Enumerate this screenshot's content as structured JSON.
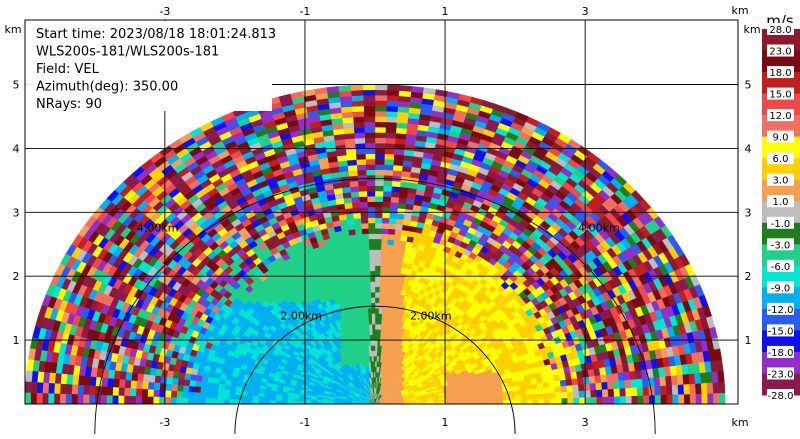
{
  "chart_data": {
    "type": "heatmap",
    "subtype": "radar-rhi-velocity",
    "info": {
      "start_time": "Start time: 2023/08/18 18:01:24.813",
      "instrument": "WLS200s-181/WLS200s-181",
      "field": "Field: VEL",
      "azimuth": "Azimuth(deg): 350.00",
      "nrays": "NRays: 90"
    },
    "x_unit": "km",
    "y_unit": "km",
    "xlim": [
      -4,
      5.5
    ],
    "ylim": [
      0,
      5.5
    ],
    "x_ticks": [
      -3,
      -1,
      1,
      3
    ],
    "y_ticks": [
      1,
      2,
      3,
      4,
      5
    ],
    "range_rings_km": [
      2,
      4
    ],
    "range_ring_labels": [
      "2.00km",
      "2.00km",
      "4.00km",
      "4.00km"
    ],
    "max_range_km": 5.0,
    "grid": true,
    "colorbar": {
      "unit": "m/s",
      "placement": "right",
      "tick_labels": [
        "28.0",
        "23.0",
        "18.0",
        "15.0",
        "12.0",
        "9.0",
        "6.0",
        "3.0",
        "1.0",
        "-1.0",
        "-3.0",
        "-6.0",
        "-9.0",
        "-12.0",
        "-15.0",
        "-18.0",
        "-23.0",
        "-28.0"
      ],
      "bins": [
        {
          "range": "23 to 28",
          "color": "#8b1a2e"
        },
        {
          "range": "18 to 23",
          "color": "#7a0a12"
        },
        {
          "range": "15 to 18",
          "color": "#c41d1d"
        },
        {
          "range": "12 to 15",
          "color": "#f04848"
        },
        {
          "range": "9 to 12",
          "color": "#f07060"
        },
        {
          "range": "6 to 9",
          "color": "#ffff00"
        },
        {
          "range": "3 to 6",
          "color": "#ffd000"
        },
        {
          "range": "1 to 3",
          "color": "#f5a050"
        },
        {
          "range": "-1 to 1",
          "color": "#bdbdbd"
        },
        {
          "range": "-3 to -1",
          "color": "#1e7d1e"
        },
        {
          "range": "-6 to -3",
          "color": "#1fd088"
        },
        {
          "range": "-9 to -6",
          "color": "#00e5d2"
        },
        {
          "range": "-12 to -9",
          "color": "#00b0f0"
        },
        {
          "range": "-15 to -12",
          "color": "#2a5cf0"
        },
        {
          "range": "-18 to -15",
          "color": "#1010ee"
        },
        {
          "range": "-23 to -18",
          "color": "#9030c8"
        },
        {
          "range": "-28 to -23",
          "color": "#8b1a4e"
        }
      ]
    },
    "velocity_field_summary": [
      {
        "region": "left of 0 km, below ~2.5 km",
        "velocity_ms": -10,
        "note": "negative (toward radar), blue/cyan"
      },
      {
        "region": "right of 0 km, below ~2.5 km",
        "velocity_ms": 5,
        "note": "positive (away), yellow/orange"
      },
      {
        "region": "near x=0 km",
        "velocity_ms": 0,
        "note": "near zero, gray/green"
      },
      {
        "region": "beyond ~3 km range",
        "velocity_ms": null,
        "note": "noise, random colors"
      }
    ]
  }
}
